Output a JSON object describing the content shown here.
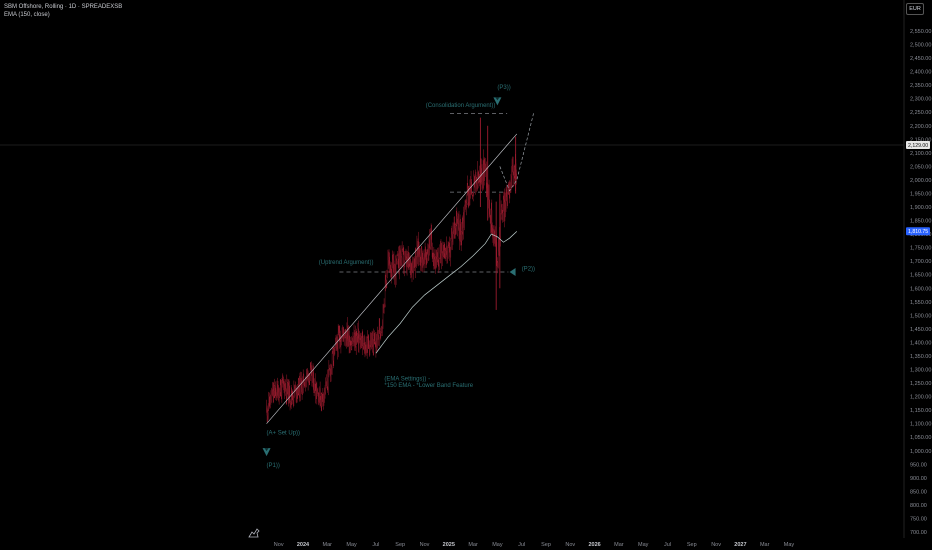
{
  "legend": {
    "symbol_line": "SBM Offshore, Rolling · 1D · SPREADEXSB",
    "indicator_line": "EMA (150, close)"
  },
  "currency": "EUR",
  "colors": {
    "background": "#000000",
    "candle_down": "#9b1b2e",
    "candle_up": "#4a1018",
    "ema": "#bfd0cf",
    "annotation": "#2a6f73",
    "axis_text": "#8a8d96",
    "price_tag": "#2962ff"
  },
  "chart_data": {
    "type": "candlestick",
    "title": "SBM Offshore, Rolling · 1D · SPREADEXSB",
    "ylabel": "",
    "ylim": [
      700,
      2600
    ],
    "y_ticks": [
      700,
      750,
      800,
      850,
      900,
      950,
      1000,
      1050,
      1100,
      1150,
      1200,
      1250,
      1300,
      1350,
      1400,
      1450,
      1500,
      1550,
      1600,
      1650,
      1700,
      1750,
      1800,
      1850,
      1900,
      1950,
      2000,
      2050,
      2100,
      2150,
      2200,
      2250,
      2300,
      2350,
      2400,
      2450,
      2500,
      2550
    ],
    "y_tick_labels": [
      "700.00",
      "750.00",
      "800.00",
      "850.00",
      "900.00",
      "950.00",
      "1,000.00",
      "1,050.00",
      "1,100.00",
      "1,150.00",
      "1,200.00",
      "1,250.00",
      "1,300.00",
      "1,350.00",
      "1,400.00",
      "1,450.00",
      "1,500.00",
      "1,550.00",
      "1,600.00",
      "1,650.00",
      "1,700.00",
      "1,750.00",
      "1,800.00",
      "1,850.00",
      "1,900.00",
      "1,950.00",
      "2,000.00",
      "2,050.00",
      "2,100.00",
      "2,150.00",
      "2,200.00",
      "2,250.00",
      "2,300.00",
      "2,350.00",
      "2,400.00",
      "2,450.00",
      "2,500.00",
      "2,550.00"
    ],
    "x_tick_labels": [
      "Nov",
      "2024",
      "Mar",
      "May",
      "Jul",
      "Sep",
      "Nov",
      "2025",
      "Mar",
      "May",
      "Jul",
      "Sep",
      "Nov",
      "2026",
      "Mar",
      "May",
      "Jul",
      "Sep",
      "Nov",
      "2027",
      "Mar",
      "May"
    ],
    "x_tick_months": [
      -2,
      0,
      2,
      4,
      6,
      8,
      10,
      12,
      14,
      16,
      18,
      20,
      22,
      24,
      26,
      28,
      30,
      32,
      34,
      36,
      38,
      40
    ],
    "bold_x_labels": [
      "2024",
      "2025",
      "2026",
      "2027"
    ],
    "price_path": [
      [
        -3.0,
        1150
      ],
      [
        -2.5,
        1210
      ],
      [
        -2.0,
        1225
      ],
      [
        -1.5,
        1240
      ],
      [
        -1.0,
        1200
      ],
      [
        -0.5,
        1230
      ],
      [
        0.0,
        1250
      ],
      [
        0.5,
        1290
      ],
      [
        1.0,
        1240
      ],
      [
        1.5,
        1190
      ],
      [
        2.0,
        1250
      ],
      [
        2.5,
        1350
      ],
      [
        3.0,
        1420
      ],
      [
        3.5,
        1440
      ],
      [
        4.0,
        1400
      ],
      [
        4.5,
        1420
      ],
      [
        5.0,
        1380
      ],
      [
        5.5,
        1400
      ],
      [
        6.0,
        1390
      ],
      [
        6.5,
        1480
      ],
      [
        7.0,
        1700
      ],
      [
        7.5,
        1660
      ],
      [
        8.0,
        1720
      ],
      [
        8.5,
        1690
      ],
      [
        9.0,
        1690
      ],
      [
        9.5,
        1740
      ],
      [
        10.0,
        1700
      ],
      [
        10.5,
        1780
      ],
      [
        11.0,
        1680
      ],
      [
        11.5,
        1760
      ],
      [
        12.0,
        1720
      ],
      [
        12.5,
        1850
      ],
      [
        13.0,
        1800
      ],
      [
        13.5,
        1950
      ],
      [
        14.0,
        1970
      ],
      [
        14.5,
        2000
      ],
      [
        15.0,
        2050
      ],
      [
        15.5,
        1850
      ],
      [
        15.8,
        1780
      ],
      [
        16.0,
        1700
      ],
      [
        16.3,
        1880
      ],
      [
        16.6,
        1900
      ],
      [
        17.0,
        2000
      ],
      [
        17.3,
        2020
      ],
      [
        17.6,
        2050
      ]
    ],
    "wick_events": [
      {
        "t": 14.6,
        "low": 1900,
        "high": 2230
      },
      {
        "t": 15.2,
        "low": 1850,
        "high": 2200
      },
      {
        "t": 15.9,
        "low": 1520,
        "high": 1920
      },
      {
        "t": 16.2,
        "low": 1600,
        "high": 1950
      },
      {
        "t": 17.5,
        "low": 1950,
        "high": 2160
      }
    ],
    "ema_path": [
      [
        6.0,
        1360
      ],
      [
        7.0,
        1420
      ],
      [
        8.0,
        1470
      ],
      [
        9.0,
        1530
      ],
      [
        10.0,
        1575
      ],
      [
        11.0,
        1610
      ],
      [
        12.0,
        1645
      ],
      [
        13.0,
        1680
      ],
      [
        14.0,
        1720
      ],
      [
        15.0,
        1765
      ],
      [
        15.5,
        1800
      ],
      [
        16.0,
        1790
      ],
      [
        16.5,
        1770
      ],
      [
        17.0,
        1785
      ],
      [
        17.6,
        1810
      ]
    ],
    "trend_line": [
      [
        -3.0,
        1100
      ],
      [
        17.6,
        2170
      ]
    ],
    "projection_path": [
      [
        16.2,
        2050
      ],
      [
        17.0,
        1960
      ],
      [
        17.6,
        2000
      ],
      [
        19.0,
        2250
      ]
    ],
    "levels": [
      {
        "name": "consolidation-top",
        "price": 2245,
        "from": 12.1,
        "to": 16.8
      },
      {
        "name": "consolidation-mid",
        "price": 1955,
        "from": 12.1,
        "to": 16.8
      },
      {
        "name": "uptrend-level",
        "price": 1660,
        "from": 3.0,
        "to": 16.9
      }
    ],
    "price_tags": [
      {
        "label": "2,129.00",
        "price": 2129,
        "style": "white"
      },
      {
        "label": "1,810.75",
        "price": 1810.75,
        "style": "blue"
      }
    ],
    "crosshair_price": 2129,
    "annotations": [
      {
        "text": "(P3))",
        "t": 16.0,
        "price": 2335
      },
      {
        "text": "(Consolidation Argument))",
        "t": 10.1,
        "price": 2270
      },
      {
        "text": "(Uptrend Argument))",
        "t": 1.3,
        "price": 1690
      },
      {
        "text": "(P2))",
        "t": 18.0,
        "price": 1665
      },
      {
        "text": "(EMA Settings)) -",
        "t": 6.7,
        "price": 1260
      },
      {
        "text": "*150 EMA - *Lower Band Feature",
        "t": 6.7,
        "price": 1235
      },
      {
        "text": "(A+ Set Up))",
        "t": -3.0,
        "price": 1060
      },
      {
        "text": "(P1))",
        "t": -3.0,
        "price": 940
      }
    ],
    "markers": [
      {
        "name": "p3-marker",
        "t": 16.0,
        "price": 2290
      },
      {
        "name": "p2-marker",
        "t": 17.0,
        "price": 1660
      },
      {
        "name": "p1-marker",
        "t": -3.0,
        "price": 995
      }
    ]
  }
}
